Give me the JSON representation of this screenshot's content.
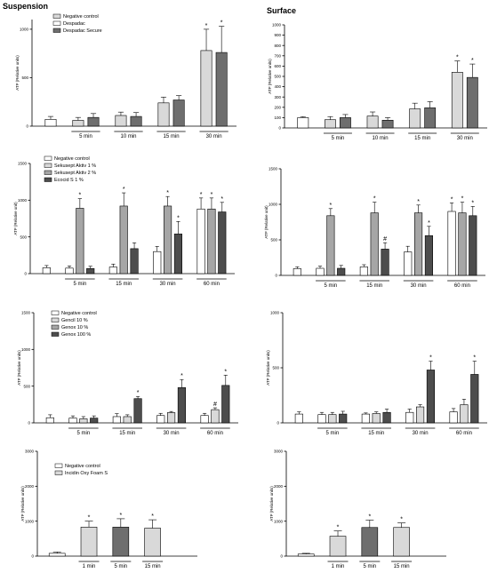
{
  "headers": {
    "left": "Suspension",
    "right": "Surface"
  },
  "colors": {
    "white": "#ffffff",
    "light": "#d9d9d9",
    "mid": "#a6a6a6",
    "dark": "#6e6e6e",
    "darker": "#4d4d4d"
  },
  "chart_data": [
    {
      "id": "p1",
      "type": "bar",
      "ylabel": "ATP (Relative units)",
      "yticks": [
        "0",
        "500",
        "1000"
      ],
      "ylim": [
        0,
        1100
      ],
      "legend": [
        "Negative control",
        "Despadac",
        "Despadac Secure"
      ],
      "legend_colors": [
        "light",
        "white",
        "dark"
      ],
      "groups": [
        {
          "label": "",
          "bars": [
            {
              "value": 70,
              "err": 30,
              "color": "white",
              "sig": ""
            }
          ]
        },
        {
          "label": "5 min",
          "bars": [
            {
              "value": 60,
              "err": 30,
              "color": "light",
              "sig": ""
            },
            {
              "value": 90,
              "err": 40,
              "color": "dark",
              "sig": ""
            }
          ]
        },
        {
          "label": "10 min",
          "bars": [
            {
              "value": 110,
              "err": 35,
              "color": "light",
              "sig": ""
            },
            {
              "value": 100,
              "err": 40,
              "color": "dark",
              "sig": ""
            }
          ]
        },
        {
          "label": "15 min",
          "bars": [
            {
              "value": 240,
              "err": 60,
              "color": "light",
              "sig": ""
            },
            {
              "value": 270,
              "err": 45,
              "color": "dark",
              "sig": ""
            }
          ]
        },
        {
          "label": "30 min",
          "bars": [
            {
              "value": 780,
              "err": 220,
              "color": "light",
              "sig": "*"
            },
            {
              "value": 760,
              "err": 270,
              "color": "dark",
              "sig": "*"
            }
          ]
        }
      ]
    },
    {
      "id": "p2",
      "type": "bar",
      "ylabel": "ATP (Relative units)",
      "yticks": [
        "0",
        "100",
        "200",
        "300",
        "400",
        "500",
        "600",
        "700",
        "800",
        "900",
        "1000"
      ],
      "ylim": [
        0,
        1000
      ],
      "legend": [],
      "legend_colors": [],
      "groups": [
        {
          "label": "",
          "bars": [
            {
              "value": 100,
              "err": 10,
              "color": "white",
              "sig": ""
            }
          ]
        },
        {
          "label": "5 min",
          "bars": [
            {
              "value": 80,
              "err": 30,
              "color": "light",
              "sig": ""
            },
            {
              "value": 100,
              "err": 30,
              "color": "dark",
              "sig": ""
            }
          ]
        },
        {
          "label": "10 min",
          "bars": [
            {
              "value": 115,
              "err": 40,
              "color": "light",
              "sig": ""
            },
            {
              "value": 75,
              "err": 25,
              "color": "dark",
              "sig": ""
            }
          ]
        },
        {
          "label": "15 min",
          "bars": [
            {
              "value": 185,
              "err": 55,
              "color": "light",
              "sig": ""
            },
            {
              "value": 195,
              "err": 60,
              "color": "dark",
              "sig": ""
            }
          ]
        },
        {
          "label": "30 min",
          "bars": [
            {
              "value": 540,
              "err": 110,
              "color": "light",
              "sig": "*"
            },
            {
              "value": 490,
              "err": 130,
              "color": "dark",
              "sig": "*"
            }
          ]
        }
      ]
    },
    {
      "id": "p3",
      "type": "bar",
      "ylabel": "ATP (Relative unit)",
      "yticks": [
        "0",
        "500",
        "1000",
        "1500"
      ],
      "ylim": [
        0,
        1500
      ],
      "legend": [
        "Negative control",
        "Sekusept Aktiv 1 %",
        "Sekusept Aktiv 2 %",
        "Ecocid S 1 %"
      ],
      "legend_colors": [
        "white",
        "light",
        "mid",
        "darker"
      ],
      "groups": [
        {
          "label": "",
          "bars": [
            {
              "value": 80,
              "err": 30,
              "color": "white",
              "sig": ""
            }
          ]
        },
        {
          "label": "5 min",
          "bars": [
            {
              "value": 75,
              "err": 30,
              "color": "white",
              "sig": ""
            },
            {
              "value": 890,
              "err": 130,
              "color": "mid",
              "sig": "*"
            },
            {
              "value": 70,
              "err": 30,
              "color": "darker",
              "sig": ""
            }
          ]
        },
        {
          "label": "15 min",
          "bars": [
            {
              "value": 90,
              "err": 40,
              "color": "white",
              "sig": ""
            },
            {
              "value": 920,
              "err": 180,
              "color": "mid",
              "sig": "*"
            },
            {
              "value": 340,
              "err": 80,
              "color": "darker",
              "sig": ""
            }
          ]
        },
        {
          "label": "30 min",
          "bars": [
            {
              "value": 300,
              "err": 70,
              "color": "white",
              "sig": ""
            },
            {
              "value": 920,
              "err": 130,
              "color": "mid",
              "sig": "*"
            },
            {
              "value": 540,
              "err": 170,
              "color": "darker",
              "sig": "*"
            }
          ]
        },
        {
          "label": "60 min",
          "bars": [
            {
              "value": 880,
              "err": 150,
              "color": "white",
              "sig": "*"
            },
            {
              "value": 880,
              "err": 150,
              "color": "mid",
              "sig": "*"
            },
            {
              "value": 840,
              "err": 130,
              "color": "darker",
              "sig": "*"
            }
          ]
        }
      ]
    },
    {
      "id": "p4",
      "type": "bar",
      "ylabel": "ATP (Relative unit)",
      "yticks": [
        "0",
        "500",
        "1000",
        "1500"
      ],
      "ylim": [
        0,
        1500
      ],
      "legend": [],
      "legend_colors": [],
      "groups": [
        {
          "label": "",
          "bars": [
            {
              "value": 95,
              "err": 25,
              "color": "white",
              "sig": ""
            }
          ]
        },
        {
          "label": "5 min",
          "bars": [
            {
              "value": 100,
              "err": 30,
              "color": "white",
              "sig": ""
            },
            {
              "value": 840,
              "err": 100,
              "color": "mid",
              "sig": "*"
            },
            {
              "value": 100,
              "err": 40,
              "color": "darker",
              "sig": ""
            }
          ]
        },
        {
          "label": "15 min",
          "bars": [
            {
              "value": 120,
              "err": 30,
              "color": "white",
              "sig": ""
            },
            {
              "value": 880,
              "err": 150,
              "color": "mid",
              "sig": "*"
            },
            {
              "value": 370,
              "err": 90,
              "color": "darker",
              "sig": "#"
            }
          ]
        },
        {
          "label": "30 min",
          "bars": [
            {
              "value": 330,
              "err": 80,
              "color": "white",
              "sig": ""
            },
            {
              "value": 880,
              "err": 110,
              "color": "mid",
              "sig": "*"
            },
            {
              "value": 560,
              "err": 130,
              "color": "darker",
              "sig": "*"
            }
          ]
        },
        {
          "label": "60 min",
          "bars": [
            {
              "value": 900,
              "err": 120,
              "color": "white",
              "sig": "*"
            },
            {
              "value": 880,
              "err": 150,
              "color": "mid",
              "sig": "*"
            },
            {
              "value": 840,
              "err": 130,
              "color": "darker",
              "sig": "*"
            }
          ]
        }
      ]
    },
    {
      "id": "p5",
      "type": "bar",
      "ylabel": "ATP (Relative units)",
      "yticks": [
        "0",
        "500",
        "1000",
        "1500"
      ],
      "ylim": [
        0,
        1500
      ],
      "legend": [
        "Negative control",
        "Gencil 10 %",
        "Genox 10 %",
        "Genox 100 %"
      ],
      "legend_colors": [
        "white",
        "light",
        "mid",
        "darker"
      ],
      "groups": [
        {
          "label": "",
          "bars": [
            {
              "value": 70,
              "err": 40,
              "color": "white",
              "sig": ""
            }
          ]
        },
        {
          "label": "5 min",
          "bars": [
            {
              "value": 65,
              "err": 30,
              "color": "white",
              "sig": ""
            },
            {
              "value": 55,
              "err": 30,
              "color": "light",
              "sig": ""
            },
            {
              "value": 65,
              "err": 30,
              "color": "darker",
              "sig": ""
            }
          ]
        },
        {
          "label": "15 min",
          "bars": [
            {
              "value": 85,
              "err": 40,
              "color": "white",
              "sig": ""
            },
            {
              "value": 85,
              "err": 25,
              "color": "light",
              "sig": ""
            },
            {
              "value": 330,
              "err": 30,
              "color": "darker",
              "sig": "*"
            }
          ]
        },
        {
          "label": "30 min",
          "bars": [
            {
              "value": 100,
              "err": 30,
              "color": "white",
              "sig": ""
            },
            {
              "value": 140,
              "err": 15,
              "color": "light",
              "sig": ""
            },
            {
              "value": 480,
              "err": 110,
              "color": "darker",
              "sig": "*"
            }
          ]
        },
        {
          "label": "60 min",
          "bars": [
            {
              "value": 100,
              "err": 30,
              "color": "white",
              "sig": ""
            },
            {
              "value": 180,
              "err": 25,
              "color": "light",
              "sig": "#"
            },
            {
              "value": 510,
              "err": 140,
              "color": "darker",
              "sig": "*"
            }
          ]
        }
      ]
    },
    {
      "id": "p6",
      "type": "bar",
      "ylabel": "ATP (Relative units)",
      "yticks": [
        "0",
        "500",
        "1000"
      ],
      "ylim": [
        0,
        1000
      ],
      "legend": [],
      "legend_colors": [],
      "groups": [
        {
          "label": "",
          "bars": [
            {
              "value": 80,
              "err": 20,
              "color": "white",
              "sig": ""
            }
          ]
        },
        {
          "label": "5 min",
          "bars": [
            {
              "value": 75,
              "err": 20,
              "color": "white",
              "sig": ""
            },
            {
              "value": 75,
              "err": 20,
              "color": "light",
              "sig": ""
            },
            {
              "value": 80,
              "err": 25,
              "color": "darker",
              "sig": ""
            }
          ]
        },
        {
          "label": "15 min",
          "bars": [
            {
              "value": 80,
              "err": 10,
              "color": "white",
              "sig": ""
            },
            {
              "value": 85,
              "err": 15,
              "color": "light",
              "sig": ""
            },
            {
              "value": 95,
              "err": 30,
              "color": "darker",
              "sig": ""
            }
          ]
        },
        {
          "label": "30 min",
          "bars": [
            {
              "value": 95,
              "err": 30,
              "color": "white",
              "sig": ""
            },
            {
              "value": 145,
              "err": 20,
              "color": "light",
              "sig": ""
            },
            {
              "value": 480,
              "err": 80,
              "color": "darker",
              "sig": "*"
            }
          ]
        },
        {
          "label": "60 min",
          "bars": [
            {
              "value": 100,
              "err": 30,
              "color": "white",
              "sig": ""
            },
            {
              "value": 165,
              "err": 50,
              "color": "light",
              "sig": ""
            },
            {
              "value": 440,
              "err": 120,
              "color": "darker",
              "sig": "*"
            }
          ]
        }
      ]
    },
    {
      "id": "p7",
      "type": "bar",
      "ylabel": "ATP (Relative units)",
      "yticks": [
        "0",
        "1000",
        "2000",
        "3000"
      ],
      "ylim": [
        0,
        3000
      ],
      "legend": [
        "Negative control",
        "Incidin Oxy Foam S"
      ],
      "legend_colors": [
        "white",
        "light"
      ],
      "groups": [
        {
          "label": "",
          "bars": [
            {
              "value": 80,
              "err": 40,
              "color": "white",
              "sig": ""
            }
          ]
        },
        {
          "label": "1 min",
          "bars": [
            {
              "value": 830,
              "err": 170,
              "color": "light",
              "sig": "*"
            }
          ]
        },
        {
          "label": "5 min",
          "bars": [
            {
              "value": 830,
              "err": 240,
              "color": "dark",
              "sig": "*"
            }
          ]
        },
        {
          "label": "15 min",
          "bars": [
            {
              "value": 800,
              "err": 240,
              "color": "light",
              "sig": "*"
            }
          ]
        }
      ]
    },
    {
      "id": "p8",
      "type": "bar",
      "ylabel": "ATP (Relative units)",
      "yticks": [
        "0",
        "1000",
        "2000",
        "3000"
      ],
      "ylim": [
        0,
        3000
      ],
      "legend": [],
      "legend_colors": [],
      "groups": [
        {
          "label": "",
          "bars": [
            {
              "value": 60,
              "err": 20,
              "color": "white",
              "sig": ""
            }
          ]
        },
        {
          "label": "1 min",
          "bars": [
            {
              "value": 570,
              "err": 150,
              "color": "light",
              "sig": "*"
            }
          ]
        },
        {
          "label": "5 min",
          "bars": [
            {
              "value": 820,
              "err": 210,
              "color": "dark",
              "sig": "*"
            }
          ]
        },
        {
          "label": "15 min",
          "bars": [
            {
              "value": 820,
              "err": 130,
              "color": "light",
              "sig": "*"
            }
          ]
        }
      ]
    }
  ]
}
